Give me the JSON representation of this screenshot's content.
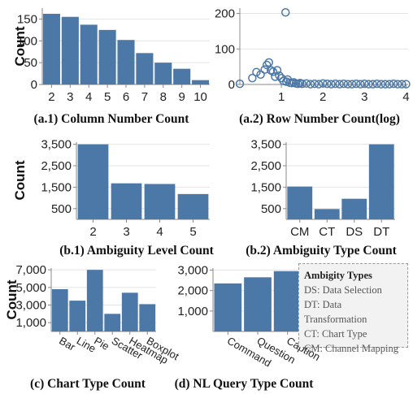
{
  "chart_data": [
    {
      "id": "a1",
      "type": "bar",
      "caption": "(a.1) Column Number Count",
      "ylabel": "Count",
      "categories": [
        "2",
        "3",
        "4",
        "5",
        "6",
        "7",
        "8",
        "9",
        "10"
      ],
      "values": [
        162,
        155,
        137,
        125,
        102,
        72,
        50,
        36,
        10
      ],
      "ylim": [
        0,
        175
      ],
      "yticks": [
        0,
        50,
        100,
        150
      ]
    },
    {
      "id": "a2",
      "type": "scatter",
      "caption": "(a.2) Row Number Count(log)",
      "ylabel": "",
      "xlim": [
        0,
        4.05
      ],
      "xticks": [
        1,
        2,
        3,
        4
      ],
      "ylim": [
        0,
        215
      ],
      "yticks": [
        0,
        100,
        200
      ],
      "x": [
        0.0,
        0.3,
        0.4,
        0.5,
        0.6,
        0.65,
        0.7,
        0.75,
        0.8,
        0.85,
        0.9,
        0.95,
        1.0,
        1.05,
        1.1,
        1.12,
        1.15,
        1.2,
        1.25,
        1.3,
        1.35,
        1.4,
        1.45,
        1.5,
        1.6,
        1.7,
        1.8,
        1.9,
        2.0,
        2.1,
        2.2,
        2.3,
        2.4,
        2.5,
        2.6,
        2.7,
        2.8,
        2.9,
        3.0,
        3.1,
        3.2,
        3.3,
        3.4,
        3.5,
        3.6,
        3.7,
        3.8,
        3.9,
        4.0
      ],
      "y": [
        2,
        18,
        35,
        28,
        42,
        55,
        62,
        40,
        36,
        22,
        40,
        25,
        18,
        10,
        203,
        8,
        14,
        5,
        4,
        6,
        3,
        2,
        4,
        2,
        3,
        1,
        2,
        1,
        3,
        2,
        1,
        2,
        1,
        2,
        1,
        1,
        2,
        1,
        2,
        1,
        1,
        2,
        1,
        1,
        1,
        2,
        1,
        1,
        1
      ]
    },
    {
      "id": "b1",
      "type": "bar",
      "caption": "(b.1) Ambiguity Level Count",
      "ylabel": "Count",
      "categories": [
        "2",
        "3",
        "4",
        "5"
      ],
      "values": [
        3500,
        1680,
        1650,
        1180
      ],
      "ylim": [
        0,
        3600
      ],
      "yticks": [
        500,
        1500,
        2500,
        3500
      ],
      "ytick_labels": [
        "500",
        "1,500",
        "2,500",
        "3,500"
      ]
    },
    {
      "id": "b2",
      "type": "bar",
      "caption": "(b.2) Ambiguity Type Count",
      "ylabel": "",
      "categories": [
        "CM",
        "CT",
        "DS",
        "DT"
      ],
      "values": [
        1530,
        480,
        960,
        3500
      ],
      "ylim": [
        0,
        3600
      ],
      "yticks": [
        500,
        1500,
        2500,
        3500
      ],
      "ytick_labels": [
        "500",
        "1,500",
        "2,500",
        "3,500"
      ]
    },
    {
      "id": "c",
      "type": "bar",
      "caption": "(c) Chart Type Count",
      "ylabel": "Count",
      "categories": [
        "Bar",
        "Line",
        "Pie",
        "Scatter",
        "Heatmap",
        "Boxplot"
      ],
      "values": [
        4800,
        3500,
        7000,
        2000,
        4400,
        3100
      ],
      "ylim": [
        0,
        7200
      ],
      "yticks": [
        1000,
        3000,
        5000,
        7000
      ],
      "ytick_labels": [
        "1,000",
        "3,000",
        "5,000",
        "7,000"
      ]
    },
    {
      "id": "d",
      "type": "bar",
      "caption": "(d) NL Query Type Count",
      "ylabel": "",
      "categories": [
        "Command",
        "Question",
        "Caption"
      ],
      "values": [
        2350,
        2650,
        2950
      ],
      "ylim": [
        0,
        3100
      ],
      "yticks": [
        1000,
        2000,
        3000
      ],
      "ytick_labels": [
        "1,000",
        "2,000",
        "3,000"
      ]
    }
  ],
  "legend": {
    "title": "Ambigity Types",
    "items": [
      "DS: Data Selection",
      "DT: Data Transformation",
      "CT: Chart Type",
      "CM: Channel Mapping"
    ]
  }
}
